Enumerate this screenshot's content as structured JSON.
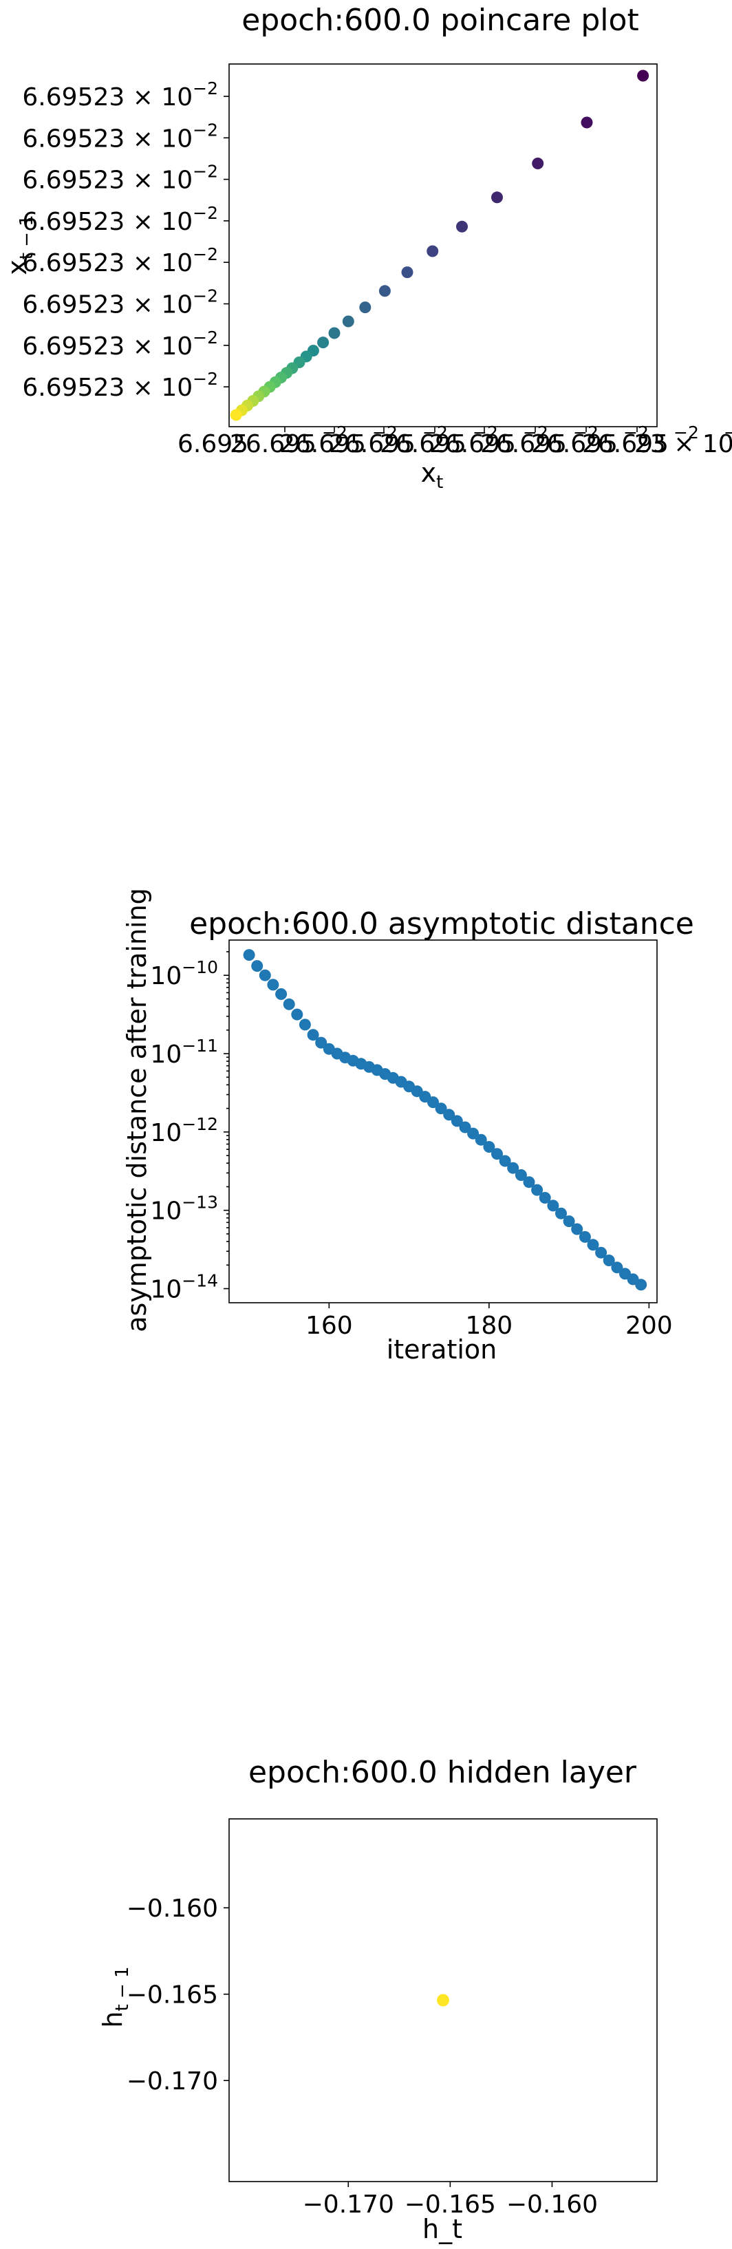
{
  "chart_data": [
    {
      "type": "scatter",
      "title": "epoch:600.0 poincare plot",
      "xlabel": "x",
      "xlabel_sub": "t",
      "ylabel": "x",
      "ylabel_sub": "t − 1",
      "colormap": [
        "#440154",
        "#3b528b",
        "#21918c",
        "#5ec962",
        "#fde725"
      ],
      "y_tick_labels": [
        "6.69523 × 10",
        "6.69523 × 10",
        "6.69523 × 10",
        "6.69523 × 10",
        "6.69523 × 10",
        "6.69523 × 10",
        "6.69523 × 10",
        "6.69523 × 10"
      ],
      "y_tick_exponent": "−2",
      "x_tick_labels": [
        "6.695",
        "26.695",
        "26.695",
        "26.695",
        "26.695",
        "26.695",
        "26.695",
        "26.695",
        "26.695",
        "23 × 10"
      ],
      "x_tick_exponent": "−2",
      "x_tick_overlay_labels": [
        "−2",
        "−2",
        "−2",
        "−2",
        "−2",
        "−2",
        "−2",
        "−2",
        "−2"
      ],
      "x": [
        0.0,
        0.4,
        0.8,
        1.2,
        1.6,
        2.0,
        2.4,
        2.8,
        3.2,
        3.6,
        4.0,
        4.5,
        5.0,
        5.5,
        6.2,
        7.0,
        8.0,
        9.2,
        10.6,
        12.2,
        14.0,
        16.1,
        18.6,
        21.5,
        25.0,
        29.0
      ],
      "y": [
        0.0,
        0.4,
        0.8,
        1.2,
        1.6,
        2.0,
        2.4,
        2.8,
        3.2,
        3.6,
        4.0,
        4.5,
        5.0,
        5.5,
        6.2,
        7.0,
        8.0,
        9.2,
        10.6,
        12.2,
        14.0,
        16.1,
        18.6,
        21.5,
        25.0,
        29.0
      ],
      "xlim": [
        -0.5,
        30.0
      ],
      "ylim": [
        -1.0,
        30.0
      ]
    },
    {
      "type": "scatter",
      "title": "epoch:600.0 asymptotic distance",
      "xlabel": "iteration",
      "ylabel": "asymptotic distance after training",
      "y_scale": "log",
      "color": "#1f77b4",
      "x_ticks": [
        160,
        180,
        200
      ],
      "y_tick_base": "10",
      "y_tick_exponents": [
        "−10",
        "−11",
        "−12",
        "−13",
        "−14"
      ],
      "xlim": [
        147.5,
        201.0
      ],
      "ylim_log10": [
        -14.18,
        -9.55
      ],
      "x": [
        150,
        151,
        152,
        153,
        154,
        155,
        156,
        157,
        158,
        159,
        160,
        161,
        162,
        163,
        164,
        165,
        166,
        167,
        168,
        169,
        170,
        171,
        172,
        173,
        174,
        175,
        176,
        177,
        178,
        179,
        180,
        181,
        182,
        183,
        184,
        185,
        186,
        187,
        188,
        189,
        190,
        191,
        192,
        193,
        194,
        195,
        196,
        197,
        198,
        199
      ],
      "log10_y": [
        -9.74,
        -9.88,
        -10.0,
        -10.12,
        -10.24,
        -10.37,
        -10.5,
        -10.63,
        -10.76,
        -10.86,
        -10.94,
        -11.0,
        -11.05,
        -11.09,
        -11.13,
        -11.17,
        -11.21,
        -11.26,
        -11.31,
        -11.36,
        -11.42,
        -11.48,
        -11.55,
        -11.62,
        -11.7,
        -11.78,
        -11.86,
        -11.94,
        -12.02,
        -12.1,
        -12.19,
        -12.28,
        -12.37,
        -12.46,
        -12.55,
        -12.64,
        -12.74,
        -12.84,
        -12.94,
        -13.04,
        -13.14,
        -13.24,
        -13.34,
        -13.44,
        -13.54,
        -13.64,
        -13.73,
        -13.81,
        -13.88,
        -13.95
      ]
    },
    {
      "type": "scatter",
      "title": "epoch:600.0 hidden layer",
      "xlabel": "h_t",
      "ylabel": "h",
      "ylabel_sub": "t − 1",
      "color": "#fde725",
      "x_ticks": [
        -0.17,
        -0.165,
        -0.16
      ],
      "x_tick_labels": [
        "−0.170",
        "−0.165",
        "−0.160"
      ],
      "y_ticks": [
        -0.16,
        -0.165,
        -0.17
      ],
      "y_tick_labels": [
        "−0.160",
        "−0.165",
        "−0.170"
      ],
      "xlim": [
        -0.17585,
        -0.15485
      ],
      "ylim": [
        -0.17585,
        -0.15485
      ],
      "x": [
        -0.16535
      ],
      "y": [
        -0.16535
      ]
    }
  ]
}
